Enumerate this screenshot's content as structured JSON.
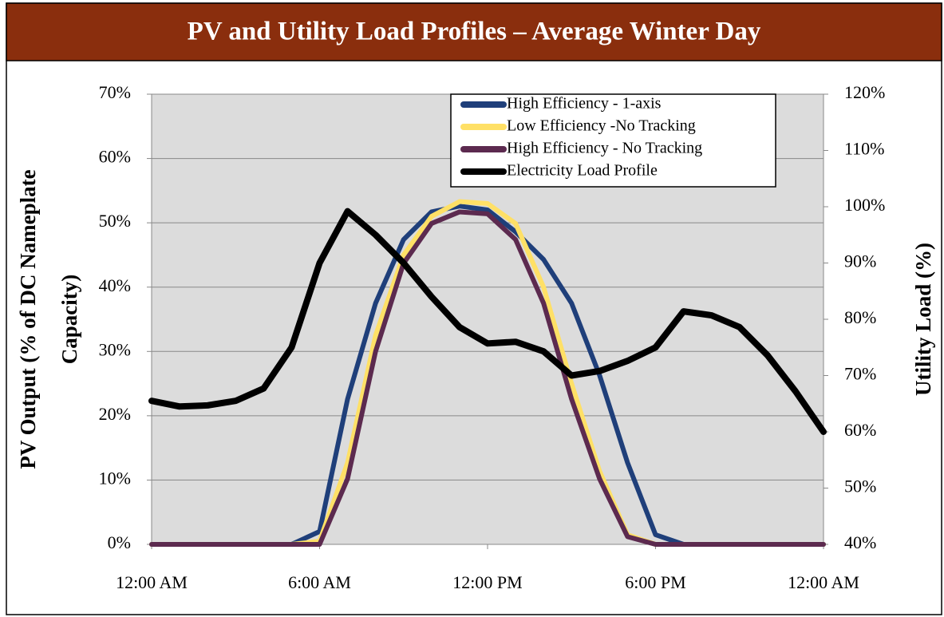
{
  "chart_data": {
    "type": "line",
    "title": "PV and Utility Load Profiles – Average Winter Day",
    "y_label": [
      "PV Output (% of DC Nameplate",
      "Capacity)"
    ],
    "y2_label": "Utility Load (%)",
    "x": [
      0,
      1,
      2,
      3,
      4,
      5,
      6,
      7,
      8,
      9,
      10,
      11,
      12,
      13,
      14,
      15,
      16,
      17,
      18,
      19,
      20,
      21,
      22,
      23,
      24
    ],
    "xlim": [
      0,
      24
    ],
    "xticks": [
      {
        "value": 0,
        "label": "12:00 AM"
      },
      {
        "value": 6,
        "label": "6:00 AM"
      },
      {
        "value": 12,
        "label": "12:00 PM"
      },
      {
        "value": 18,
        "label": "6:00 PM"
      },
      {
        "value": 24,
        "label": "12:00 AM"
      }
    ],
    "ylim": [
      0,
      70
    ],
    "yticks": [
      {
        "value": 0,
        "label": "0%"
      },
      {
        "value": 10,
        "label": "10%"
      },
      {
        "value": 20,
        "label": "20%"
      },
      {
        "value": 30,
        "label": "30%"
      },
      {
        "value": 40,
        "label": "40%"
      },
      {
        "value": 50,
        "label": "50%"
      },
      {
        "value": 60,
        "label": "60%"
      },
      {
        "value": 70,
        "label": "70%"
      }
    ],
    "y2lim": [
      40,
      120
    ],
    "y2ticks": [
      {
        "value": 40,
        "label": "40%"
      },
      {
        "value": 50,
        "label": "50%"
      },
      {
        "value": 60,
        "label": "60%"
      },
      {
        "value": 70,
        "label": "70%"
      },
      {
        "value": 80,
        "label": "80%"
      },
      {
        "value": 90,
        "label": "90%"
      },
      {
        "value": 100,
        "label": "100%"
      },
      {
        "value": 110,
        "label": "110%"
      },
      {
        "value": 120,
        "label": "120%"
      }
    ],
    "grid": true,
    "legend": "top-right",
    "series": [
      {
        "name": "High Efficiency - 1-axis",
        "color": "#1f3f7a",
        "values": [
          0,
          0,
          0,
          0,
          0,
          0,
          2,
          22.6,
          37.5,
          47.4,
          51.7,
          52.6,
          52,
          48.6,
          44.3,
          37.5,
          26.3,
          12.7,
          1.5,
          0,
          0,
          0,
          0,
          0,
          0
        ]
      },
      {
        "name": "Low Efficiency -No Tracking",
        "color": "#ffe066",
        "values": [
          0,
          0,
          0,
          0,
          0,
          0,
          0.5,
          12.7,
          32.5,
          45,
          51,
          53.3,
          53,
          49.9,
          40,
          25,
          11.4,
          1.5,
          0,
          0,
          0,
          0,
          0,
          0,
          0
        ]
      },
      {
        "name": "High Efficiency - No Tracking",
        "color": "#5c2a4f",
        "values": [
          0,
          0,
          0,
          0,
          0,
          0,
          0,
          10.2,
          30,
          43.7,
          49.9,
          51.7,
          51.4,
          47.4,
          37.5,
          22.6,
          10.2,
          1.2,
          0,
          0,
          0,
          0,
          0,
          0,
          0
        ]
      },
      {
        "name": "Electricity Load Profile",
        "color": "#000000",
        "axis": "y2",
        "values": [
          65.5,
          64.5,
          64.7,
          65.5,
          67.7,
          75,
          90,
          99.2,
          95,
          90,
          84,
          78.6,
          75.7,
          76,
          74.3,
          70,
          70.8,
          72.6,
          75,
          81.4,
          80.7,
          78.6,
          73.6,
          67.2,
          60
        ]
      }
    ]
  }
}
